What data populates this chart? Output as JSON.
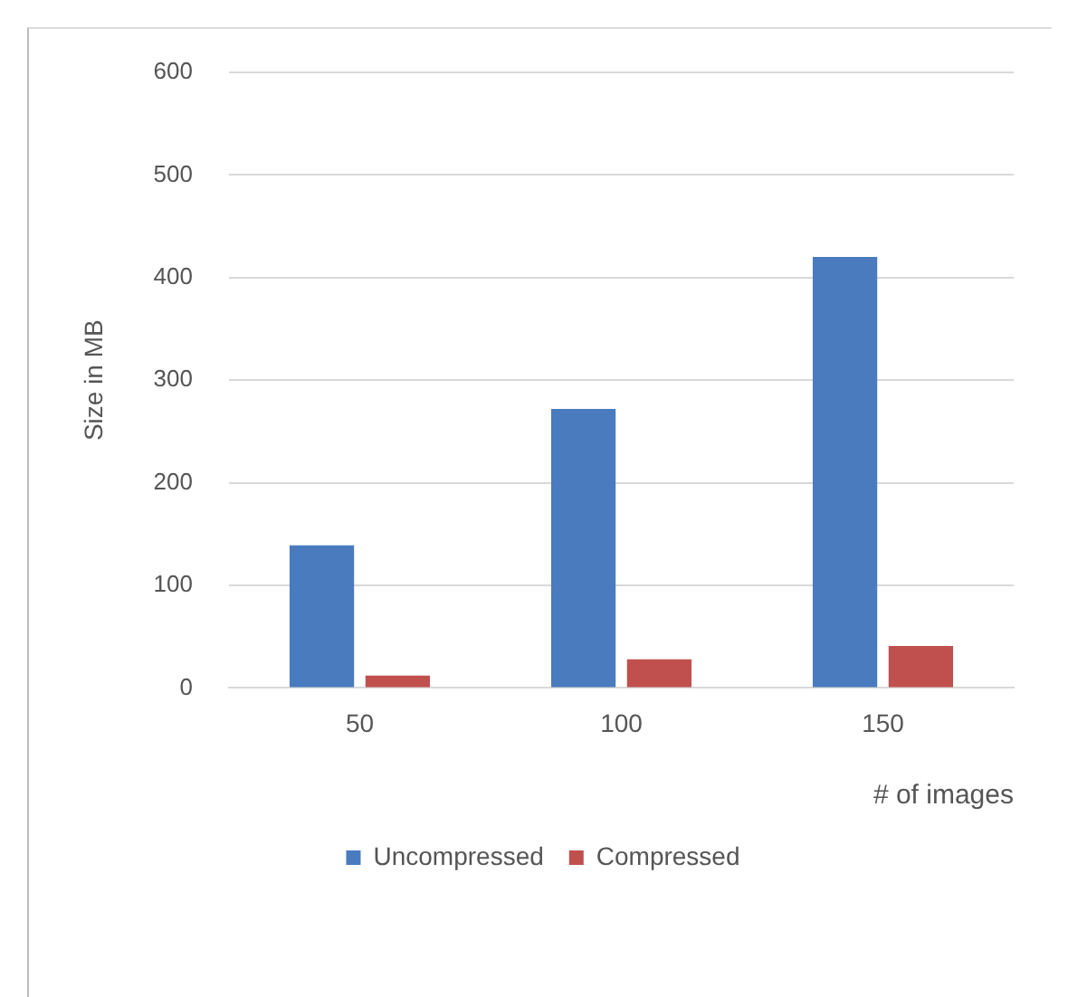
{
  "chart_data": {
    "type": "bar",
    "xlabel": "# of images",
    "ylabel": "Size in MB",
    "categories": [
      "50",
      "100",
      "150"
    ],
    "series": [
      {
        "name": "Uncompressed",
        "color": "#4a7bbf",
        "values": [
          139,
          272,
          420
        ]
      },
      {
        "name": "Compressed",
        "color": "#c0504d",
        "values": [
          12,
          28,
          41
        ]
      }
    ],
    "ylim": [
      0,
      600
    ],
    "yticks": [
      0,
      100,
      200,
      300,
      400,
      500,
      600
    ],
    "grid": "y",
    "legend": "bottom"
  }
}
